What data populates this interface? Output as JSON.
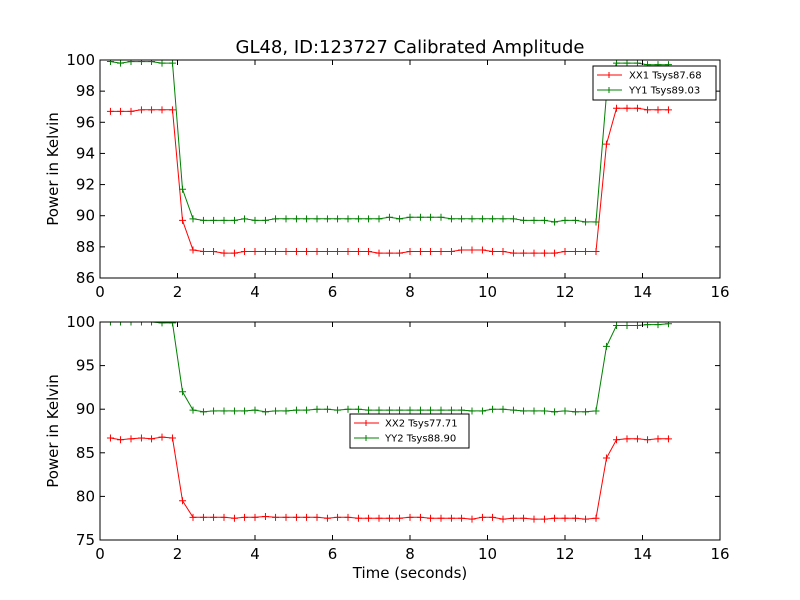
{
  "chart_data": [
    {
      "type": "line",
      "title": "GL48, ID:123727 Calibrated Amplitude",
      "xlabel": "",
      "ylabel": "Power in Kelvin",
      "xlim": [
        0,
        16
      ],
      "ylim": [
        86,
        100
      ],
      "xticks": [
        0,
        2,
        4,
        6,
        8,
        10,
        12,
        14,
        16
      ],
      "yticks": [
        86,
        88,
        90,
        92,
        94,
        96,
        98,
        100
      ],
      "grid": false,
      "legend": "top-right",
      "series": [
        {
          "name": "XX1 Tsys87.68",
          "color": "#ff0000",
          "x": [
            0.27,
            0.53,
            0.8,
            1.07,
            1.33,
            1.6,
            1.87,
            2.13,
            2.4,
            2.67,
            2.93,
            3.2,
            3.47,
            3.73,
            4.0,
            4.27,
            4.53,
            4.8,
            5.07,
            5.33,
            5.6,
            5.87,
            6.13,
            6.4,
            6.67,
            6.93,
            7.2,
            7.47,
            7.73,
            8.0,
            8.27,
            8.53,
            8.8,
            9.07,
            9.33,
            9.6,
            9.87,
            10.13,
            10.4,
            10.67,
            10.93,
            11.2,
            11.47,
            11.73,
            12.0,
            12.27,
            12.53,
            12.8,
            13.07,
            13.33,
            13.6,
            13.87,
            14.13,
            14.4,
            14.67
          ],
          "y": [
            96.7,
            96.7,
            96.7,
            96.8,
            96.8,
            96.8,
            96.8,
            89.7,
            87.8,
            87.7,
            87.7,
            87.6,
            87.6,
            87.7,
            87.7,
            87.7,
            87.7,
            87.7,
            87.7,
            87.7,
            87.7,
            87.7,
            87.7,
            87.7,
            87.7,
            87.7,
            87.6,
            87.6,
            87.6,
            87.7,
            87.7,
            87.7,
            87.7,
            87.7,
            87.8,
            87.8,
            87.8,
            87.7,
            87.7,
            87.6,
            87.6,
            87.6,
            87.6,
            87.6,
            87.7,
            87.7,
            87.7,
            87.7,
            94.6,
            96.9,
            96.9,
            96.9,
            96.8,
            96.8,
            96.8
          ]
        },
        {
          "name": "YY1 Tsys89.03",
          "color": "#008000",
          "x": [
            0.27,
            0.53,
            0.8,
            1.07,
            1.33,
            1.6,
            1.87,
            2.13,
            2.4,
            2.67,
            2.93,
            3.2,
            3.47,
            3.73,
            4.0,
            4.27,
            4.53,
            4.8,
            5.07,
            5.33,
            5.6,
            5.87,
            6.13,
            6.4,
            6.67,
            6.93,
            7.2,
            7.47,
            7.73,
            8.0,
            8.27,
            8.53,
            8.8,
            9.07,
            9.33,
            9.6,
            9.87,
            10.13,
            10.4,
            10.67,
            10.93,
            11.2,
            11.47,
            11.73,
            12.0,
            12.27,
            12.53,
            12.8,
            13.07,
            13.33,
            13.6,
            13.87,
            14.13,
            14.4,
            14.67
          ],
          "y": [
            99.9,
            99.8,
            99.9,
            99.9,
            99.9,
            99.8,
            99.8,
            91.7,
            89.8,
            89.7,
            89.7,
            89.7,
            89.7,
            89.8,
            89.7,
            89.7,
            89.8,
            89.8,
            89.8,
            89.8,
            89.8,
            89.8,
            89.8,
            89.8,
            89.8,
            89.8,
            89.8,
            89.9,
            89.8,
            89.9,
            89.9,
            89.9,
            89.9,
            89.8,
            89.8,
            89.8,
            89.8,
            89.8,
            89.8,
            89.8,
            89.7,
            89.7,
            89.7,
            89.6,
            89.7,
            89.7,
            89.6,
            89.6,
            97.8,
            99.8,
            99.8,
            99.8,
            99.7,
            99.7,
            99.7
          ]
        }
      ]
    },
    {
      "type": "line",
      "title": "",
      "xlabel": "Time (seconds)",
      "ylabel": "Power in Kelvin",
      "xlim": [
        0,
        16
      ],
      "ylim": [
        75,
        100
      ],
      "xticks": [
        0,
        2,
        4,
        6,
        8,
        10,
        12,
        14,
        16
      ],
      "yticks": [
        75,
        80,
        85,
        90,
        95,
        100
      ],
      "grid": false,
      "legend": "center",
      "series": [
        {
          "name": "XX2 Tsys77.71",
          "color": "#ff0000",
          "x": [
            0.27,
            0.53,
            0.8,
            1.07,
            1.33,
            1.6,
            1.87,
            2.13,
            2.4,
            2.67,
            2.93,
            3.2,
            3.47,
            3.73,
            4.0,
            4.27,
            4.53,
            4.8,
            5.07,
            5.33,
            5.6,
            5.87,
            6.13,
            6.4,
            6.67,
            6.93,
            7.2,
            7.47,
            7.73,
            8.0,
            8.27,
            8.53,
            8.8,
            9.07,
            9.33,
            9.6,
            9.87,
            10.13,
            10.4,
            10.67,
            10.93,
            11.2,
            11.47,
            11.73,
            12.0,
            12.27,
            12.53,
            12.8,
            13.07,
            13.33,
            13.6,
            13.87,
            14.13,
            14.4,
            14.67
          ],
          "y": [
            86.7,
            86.5,
            86.6,
            86.7,
            86.6,
            86.8,
            86.7,
            79.5,
            77.6,
            77.6,
            77.6,
            77.6,
            77.5,
            77.6,
            77.6,
            77.7,
            77.6,
            77.6,
            77.6,
            77.6,
            77.6,
            77.5,
            77.6,
            77.6,
            77.5,
            77.5,
            77.5,
            77.5,
            77.5,
            77.6,
            77.6,
            77.5,
            77.5,
            77.5,
            77.5,
            77.4,
            77.6,
            77.6,
            77.4,
            77.5,
            77.5,
            77.4,
            77.4,
            77.5,
            77.5,
            77.5,
            77.4,
            77.5,
            84.4,
            86.5,
            86.6,
            86.6,
            86.5,
            86.6,
            86.6
          ]
        },
        {
          "name": "YY2 Tsys88.90",
          "color": "#008000",
          "x": [
            0.27,
            0.53,
            0.8,
            1.07,
            1.33,
            1.6,
            1.87,
            2.13,
            2.4,
            2.67,
            2.93,
            3.2,
            3.47,
            3.73,
            4.0,
            4.27,
            4.53,
            4.8,
            5.07,
            5.33,
            5.6,
            5.87,
            6.13,
            6.4,
            6.67,
            6.93,
            7.2,
            7.47,
            7.73,
            8.0,
            8.27,
            8.53,
            8.8,
            9.07,
            9.33,
            9.6,
            9.87,
            10.13,
            10.4,
            10.67,
            10.93,
            11.2,
            11.47,
            11.73,
            12.0,
            12.27,
            12.53,
            12.8,
            13.07,
            13.33,
            13.6,
            13.87,
            14.13,
            14.4,
            14.67
          ],
          "y": [
            100.0,
            100.0,
            100.0,
            100.0,
            100.0,
            99.9,
            99.9,
            92.0,
            89.9,
            89.7,
            89.8,
            89.8,
            89.8,
            89.8,
            89.9,
            89.7,
            89.8,
            89.8,
            89.9,
            89.9,
            90.0,
            90.0,
            89.9,
            90.0,
            90.0,
            89.9,
            89.9,
            89.9,
            89.9,
            89.9,
            89.9,
            89.9,
            89.9,
            89.9,
            89.9,
            89.8,
            89.8,
            90.0,
            90.0,
            89.9,
            89.8,
            89.8,
            89.8,
            89.7,
            89.8,
            89.7,
            89.7,
            89.8,
            97.2,
            99.6,
            99.6,
            99.6,
            99.7,
            99.7,
            99.8
          ]
        }
      ]
    }
  ]
}
